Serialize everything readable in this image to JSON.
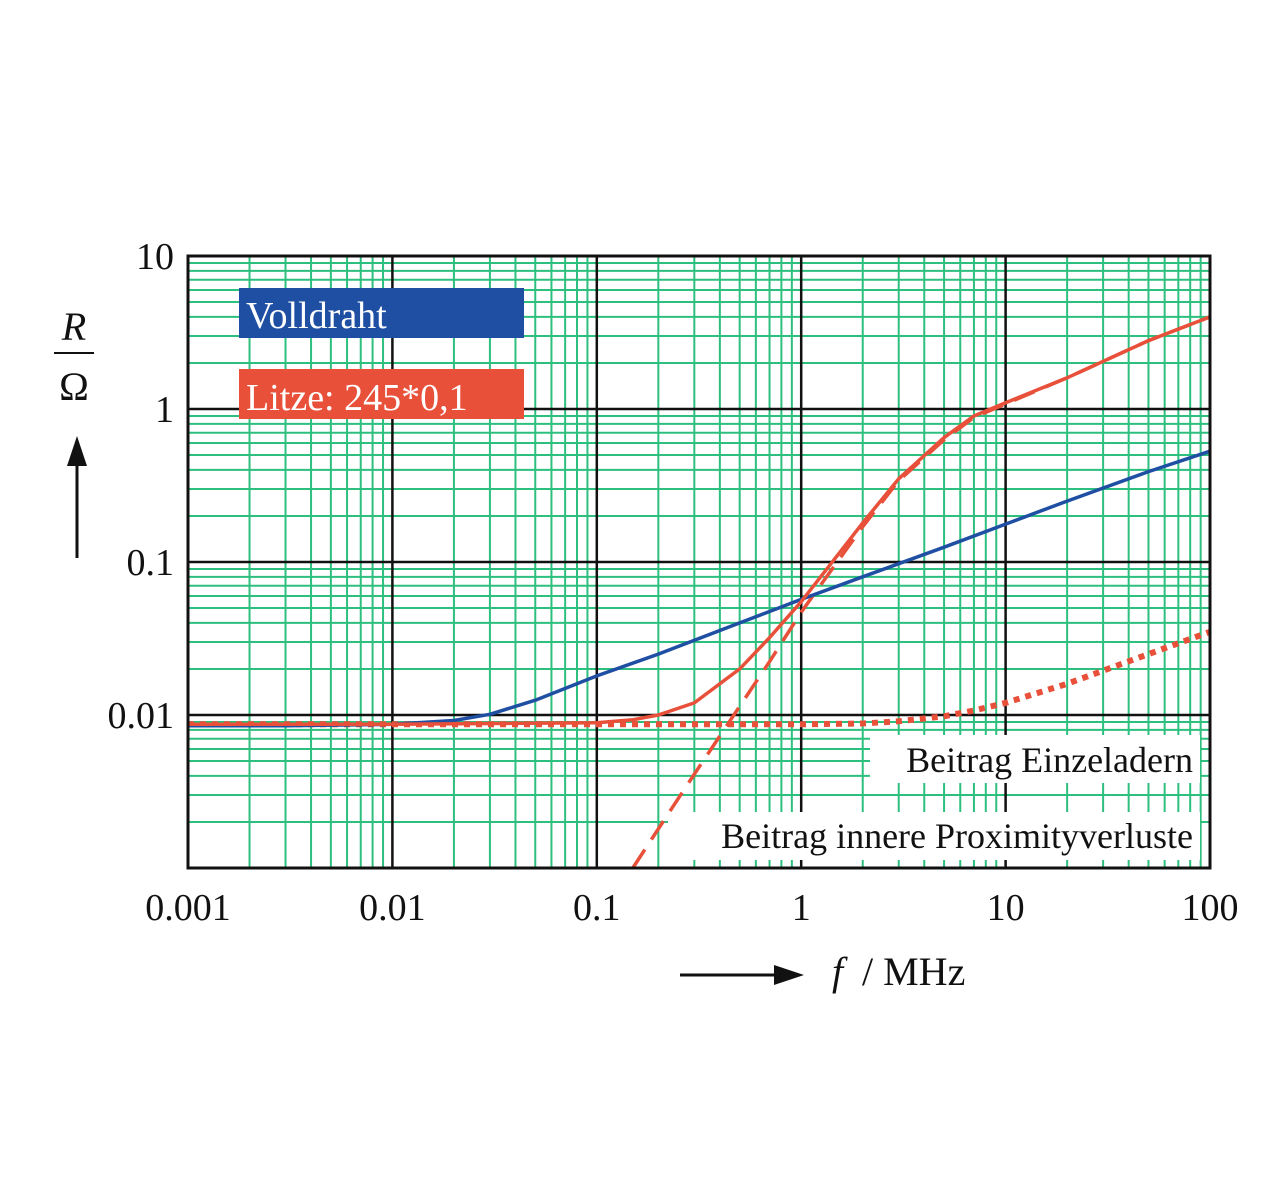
{
  "chart_data": {
    "type": "line",
    "x_scale": "log",
    "y_scale": "log",
    "xlim": [
      0.001,
      100
    ],
    "ylim": [
      0.001,
      10
    ],
    "x_ticks": [
      "0.001",
      "0.01",
      "0.1",
      "1",
      "10",
      "100"
    ],
    "y_ticks": [
      "0.01",
      "0.1",
      "1",
      "10"
    ],
    "xlabel": {
      "symbol": "f",
      "unit": "/ MHz"
    },
    "ylabel": {
      "symbol": "R",
      "unit": "Ω"
    },
    "grid": {
      "major": true,
      "minor": true,
      "minor_color": "#2dbf7e",
      "major_color": "#111111"
    },
    "legend": [
      {
        "label": "Volldraht",
        "color": "#1f4fa3",
        "series": "Volldraht"
      },
      {
        "label": "Litze: 245*0,1",
        "color": "#e8503a",
        "series": "Litze: 245*0,1"
      }
    ],
    "annotations": [
      {
        "text": "Beitrag Einzeladern"
      },
      {
        "text": "Beitrag innere Proximityverluste"
      }
    ],
    "series": [
      {
        "name": "Volldraht",
        "color": "#1f4fa3",
        "style": "solid",
        "x": [
          0.001,
          0.003,
          0.01,
          0.02,
          0.03,
          0.05,
          0.1,
          0.2,
          0.5,
          1,
          2,
          5,
          10,
          20,
          50,
          100
        ],
        "y": [
          0.0085,
          0.0085,
          0.0087,
          0.0092,
          0.0101,
          0.0125,
          0.018,
          0.025,
          0.04,
          0.057,
          0.08,
          0.125,
          0.177,
          0.25,
          0.39,
          0.53
        ]
      },
      {
        "name": "Litze: 245*0,1",
        "color": "#e8503a",
        "style": "solid",
        "x": [
          0.001,
          0.01,
          0.1,
          0.15,
          0.2,
          0.3,
          0.5,
          0.7,
          1,
          1.5,
          2,
          3,
          5,
          7,
          10,
          20,
          50,
          100
        ],
        "y": [
          0.0087,
          0.0087,
          0.0089,
          0.0093,
          0.01,
          0.012,
          0.02,
          0.032,
          0.055,
          0.11,
          0.18,
          0.35,
          0.65,
          0.9,
          1.1,
          1.6,
          2.8,
          4.0
        ]
      },
      {
        "name": "Beitrag Einzeladern",
        "color": "#e8503a",
        "style": "dotted",
        "x": [
          0.001,
          0.01,
          0.1,
          1,
          2,
          3,
          5,
          7,
          10,
          20,
          50,
          100
        ],
        "y": [
          0.0087,
          0.0087,
          0.0087,
          0.0087,
          0.0088,
          0.0091,
          0.0098,
          0.0107,
          0.012,
          0.016,
          0.025,
          0.035
        ]
      },
      {
        "name": "Beitrag innere Proximityverluste",
        "color": "#e8503a",
        "style": "dashed",
        "x": [
          0.15,
          0.2,
          0.3,
          0.5,
          0.7,
          1,
          1.5,
          2,
          3,
          5,
          7,
          10,
          20,
          50,
          100
        ],
        "y": [
          0.001,
          0.0018,
          0.0041,
          0.0114,
          0.0223,
          0.047,
          0.1,
          0.17,
          0.34,
          0.63,
          0.88,
          1.08,
          1.6,
          2.8,
          4.0
        ]
      }
    ]
  }
}
